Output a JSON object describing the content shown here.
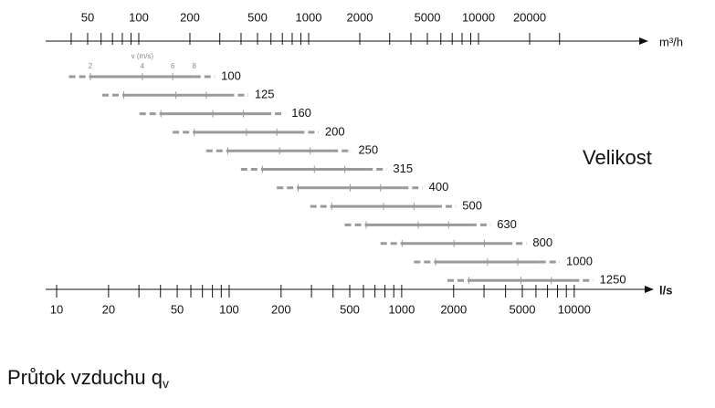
{
  "chart_data": {
    "type": "range",
    "size_label": "Velikost",
    "x_label": "Průtok vzduchu q",
    "x_label_sub": "v",
    "top_axis": {
      "unit": "m³/h",
      "log": true,
      "xlim": [
        28.3,
        88300
      ],
      "xticks": [
        50,
        100,
        200,
        500,
        1000,
        2000,
        5000,
        10000,
        20000
      ],
      "minor_ticks": [
        40,
        60,
        70,
        80,
        90,
        300,
        400,
        600,
        700,
        800,
        900,
        3000,
        4000,
        6000,
        7000,
        8000,
        9000,
        30000
      ]
    },
    "bottom_axis": {
      "unit": "l/s",
      "log": true,
      "xlim": [
        8.64,
        23800
      ],
      "xticks": [
        10,
        20,
        50,
        100,
        200,
        500,
        1000,
        2000,
        5000,
        10000
      ],
      "minor_ticks": [
        30,
        40,
        60,
        70,
        80,
        90,
        300,
        400,
        600,
        700,
        800,
        900,
        3000,
        4000,
        6000,
        7000,
        8000,
        9000
      ]
    },
    "velocity_label": "v (m/s)",
    "velocity_ticks": [
      2,
      4,
      6,
      8
    ],
    "color": "#9a9a9a",
    "series": [
      {
        "name": "100",
        "values": [
          11.8,
          15.7,
          31.4,
          47.1,
          62.8,
          82.5
        ]
      },
      {
        "name": "125",
        "values": [
          18.4,
          24.5,
          49.1,
          73.6,
          98.2,
          129
        ]
      },
      {
        "name": "160",
        "values": [
          30.2,
          40.2,
          80.4,
          121,
          161,
          211
        ]
      },
      {
        "name": "200",
        "values": [
          47.1,
          62.8,
          126,
          189,
          251,
          330
        ]
      },
      {
        "name": "250",
        "values": [
          73.6,
          98.2,
          196,
          295,
          393,
          515
        ]
      },
      {
        "name": "315",
        "values": [
          117,
          156,
          312,
          468,
          624,
          818
        ]
      },
      {
        "name": "400",
        "values": [
          189,
          251,
          503,
          754,
          1005,
          1320
        ]
      },
      {
        "name": "500",
        "values": [
          295,
          393,
          785,
          1178,
          1571,
          2062
        ]
      },
      {
        "name": "630",
        "values": [
          468,
          623,
          1247,
          1870,
          2494,
          3273
        ]
      },
      {
        "name": "800",
        "values": [
          754,
          1005,
          2011,
          3016,
          4021,
          5278
        ]
      },
      {
        "name": "1000",
        "values": [
          1178,
          1571,
          3142,
          4712,
          6283,
          8247
        ]
      },
      {
        "name": "1250",
        "values": [
          1841,
          2454,
          4909,
          7363,
          9818,
          12886
        ]
      }
    ]
  }
}
